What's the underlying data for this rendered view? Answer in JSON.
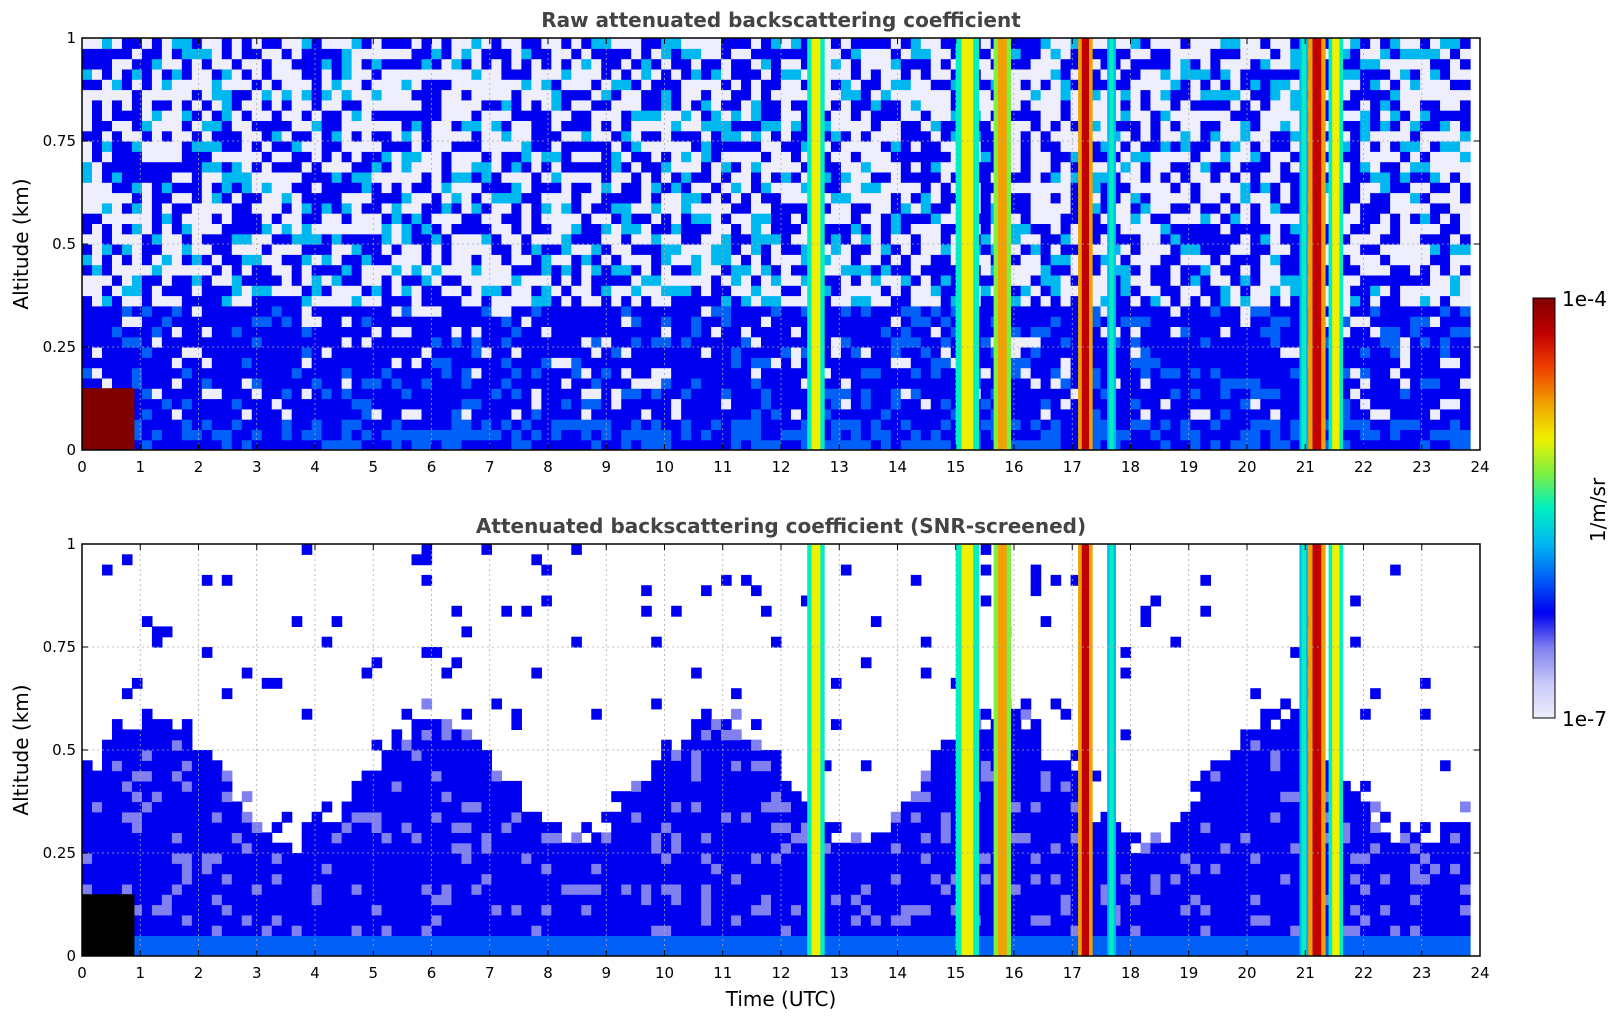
{
  "colorbar": {
    "max_label": "1e-4",
    "min_label": "1e-7",
    "unit_label": "1/m/sr",
    "scale": "log",
    "range": [
      1e-07,
      0.0001
    ],
    "colors": [
      "#eeeefc",
      "#c8c8f8",
      "#8080f0",
      "#0000f0",
      "#0060f8",
      "#00b8f0",
      "#00f0c0",
      "#80f040",
      "#f0f000",
      "#f0a000",
      "#f04000",
      "#c00000",
      "#800000"
    ]
  },
  "chart_data": [
    {
      "type": "heatmap",
      "title": "Raw attenuated backscattering coefficient",
      "xlabel": "",
      "ylabel": "Altitude (km)",
      "xlim": [
        0,
        24
      ],
      "ylim": [
        0,
        1
      ],
      "x_ticks": [
        "0",
        "1",
        "2",
        "3",
        "4",
        "5",
        "6",
        "7",
        "8",
        "9",
        "10",
        "11",
        "12",
        "13",
        "14",
        "15",
        "16",
        "17",
        "18",
        "19",
        "20",
        "21",
        "22",
        "23",
        "24"
      ],
      "y_ticks": [
        "0",
        "0.25",
        "0.5",
        "0.75",
        "1"
      ],
      "grid": true,
      "screened": false,
      "cloud_bands": [
        {
          "t0": 12.45,
          "t1": 12.75,
          "peak": "yellow"
        },
        {
          "t0": 15.0,
          "t1": 15.4,
          "peak": "yellow"
        },
        {
          "t0": 15.65,
          "t1": 15.95,
          "peak": "orange"
        },
        {
          "t0": 17.1,
          "t1": 17.35,
          "peak": "red"
        },
        {
          "t0": 17.6,
          "t1": 17.75,
          "peak": "cyan"
        },
        {
          "t0": 20.9,
          "t1": 21.05,
          "peak": "cyan"
        },
        {
          "t0": 21.05,
          "t1": 21.35,
          "peak": "red"
        },
        {
          "t0": 21.4,
          "t1": 21.65,
          "peak": "yellow"
        }
      ]
    },
    {
      "type": "heatmap",
      "title": "Attenuated backscattering coefficient (SNR-screened)",
      "xlabel": "Time (UTC)",
      "ylabel": "Altitude (km)",
      "xlim": [
        0,
        24
      ],
      "ylim": [
        0,
        1
      ],
      "x_ticks": [
        "0",
        "1",
        "2",
        "3",
        "4",
        "5",
        "6",
        "7",
        "8",
        "9",
        "10",
        "11",
        "12",
        "13",
        "14",
        "15",
        "16",
        "17",
        "18",
        "19",
        "20",
        "21",
        "22",
        "23",
        "24"
      ],
      "y_ticks": [
        "0",
        "0.25",
        "0.5",
        "0.75",
        "1"
      ],
      "grid": true,
      "screened": true,
      "cloud_bands": [
        {
          "t0": 12.45,
          "t1": 12.75,
          "peak": "yellow"
        },
        {
          "t0": 15.0,
          "t1": 15.4,
          "peak": "yellow"
        },
        {
          "t0": 15.65,
          "t1": 15.95,
          "peak": "orange"
        },
        {
          "t0": 17.1,
          "t1": 17.35,
          "peak": "red"
        },
        {
          "t0": 17.6,
          "t1": 17.75,
          "peak": "cyan"
        },
        {
          "t0": 20.9,
          "t1": 21.05,
          "peak": "cyan"
        },
        {
          "t0": 21.05,
          "t1": 21.35,
          "peak": "red"
        },
        {
          "t0": 21.4,
          "t1": 21.65,
          "peak": "yellow"
        }
      ]
    }
  ]
}
